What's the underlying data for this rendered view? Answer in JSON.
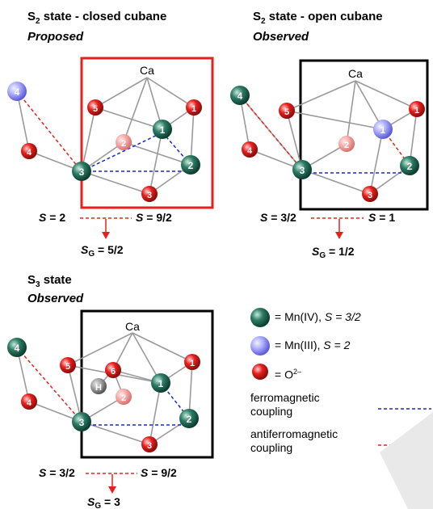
{
  "panels": {
    "s2_closed": {
      "title_main": "S",
      "title_sub": "2",
      "title_rest": " state - closed cubane",
      "subtitle": "Proposed",
      "spin_left": "2",
      "spin_right": "9/2",
      "ground": "5/2"
    },
    "s2_open": {
      "title_main": "S",
      "title_sub": "2",
      "title_rest": " state - open cubane",
      "subtitle": "Observed",
      "spin_left": "3/2",
      "spin_right": "1",
      "ground": "1/2"
    },
    "s3": {
      "title_main": "S",
      "title_sub": "3",
      "title_rest": " state",
      "subtitle": "Observed",
      "spin_left": "3/2",
      "spin_right": "9/2",
      "ground": "3"
    }
  },
  "labels": {
    "ca": "Ca",
    "h": "H",
    "spin_symbol": "S",
    "ground_symbol": "S",
    "ground_sub": "G"
  },
  "legend": {
    "mn4": "= Mn(IV), ",
    "mn4_spin": "S = 3/2",
    "mn3": "= Mn(III), ",
    "mn3_spin": "S = 2",
    "oxygen": "= O",
    "oxygen_sup": "2–",
    "ferro": "ferromagnetic coupling",
    "antiferro": "antiferromagnetic coupling"
  },
  "colors": {
    "mn4": "#2e7d66",
    "mn3": "#8f8ff5",
    "oxygen": "#e8201d",
    "box_red": "#e8201d",
    "box_black": "#000000",
    "ferro_line": "#1a28c8",
    "antiferro_line": "#e8201d",
    "bond": "#9a9a9a"
  }
}
